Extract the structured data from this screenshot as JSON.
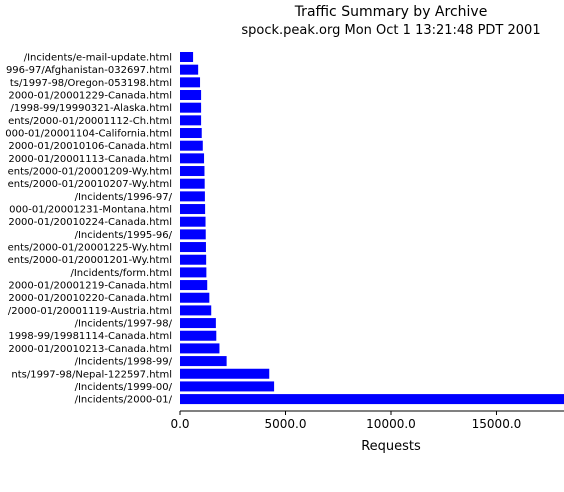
{
  "chart_data": {
    "type": "bar",
    "orientation": "horizontal",
    "title": "Traffic Summary by Archive",
    "subtitle": "spock.peak.org Mon Oct  1 13:21:48 PDT 2001",
    "xlabel": "Requests",
    "ylabel": "",
    "xlim": [
      0,
      18200
    ],
    "xticks": [
      0,
      5000,
      10000,
      15000
    ],
    "xtick_labels": [
      "0.0",
      "5000.0",
      "10000.0",
      "15000.0"
    ],
    "grid": false,
    "legend": "none",
    "bar_color": "#0000ff",
    "categories": [
      "/Incidents/e-mail-update.html",
      "996-97/Afghanistan-032697.html",
      "ts/1997-98/Oregon-053198.html",
      "2000-01/20001229-Canada.html",
      "/1998-99/19990321-Alaska.html",
      "ents/2000-01/20001112-Ch.html",
      "000-01/20001104-California.html",
      "2000-01/20010106-Canada.html",
      "2000-01/20001113-Canada.html",
      "ents/2000-01/20001209-Wy.html",
      "ents/2000-01/20010207-Wy.html",
      "/Incidents/1996-97/",
      "000-01/20001231-Montana.html",
      "2000-01/20010224-Canada.html",
      "/Incidents/1995-96/",
      "ents/2000-01/20001225-Wy.html",
      "ents/2000-01/20001201-Wy.html",
      "/Incidents/form.html",
      "2000-01/20001219-Canada.html",
      "2000-01/20010220-Canada.html",
      "/2000-01/20001119-Austria.html",
      "/Incidents/1997-98/",
      "1998-99/19981114-Canada.html",
      "2000-01/20010213-Canada.html",
      "/Incidents/1998-99/",
      "nts/1997-98/Nepal-122597.html",
      "/Incidents/1999-00/",
      "/Incidents/2000-01/"
    ],
    "values": [
      620,
      860,
      950,
      1000,
      1000,
      1000,
      1030,
      1080,
      1140,
      1160,
      1170,
      1180,
      1190,
      1210,
      1220,
      1230,
      1240,
      1250,
      1290,
      1390,
      1480,
      1700,
      1720,
      1870,
      2210,
      4230,
      4460,
      18200
    ]
  }
}
